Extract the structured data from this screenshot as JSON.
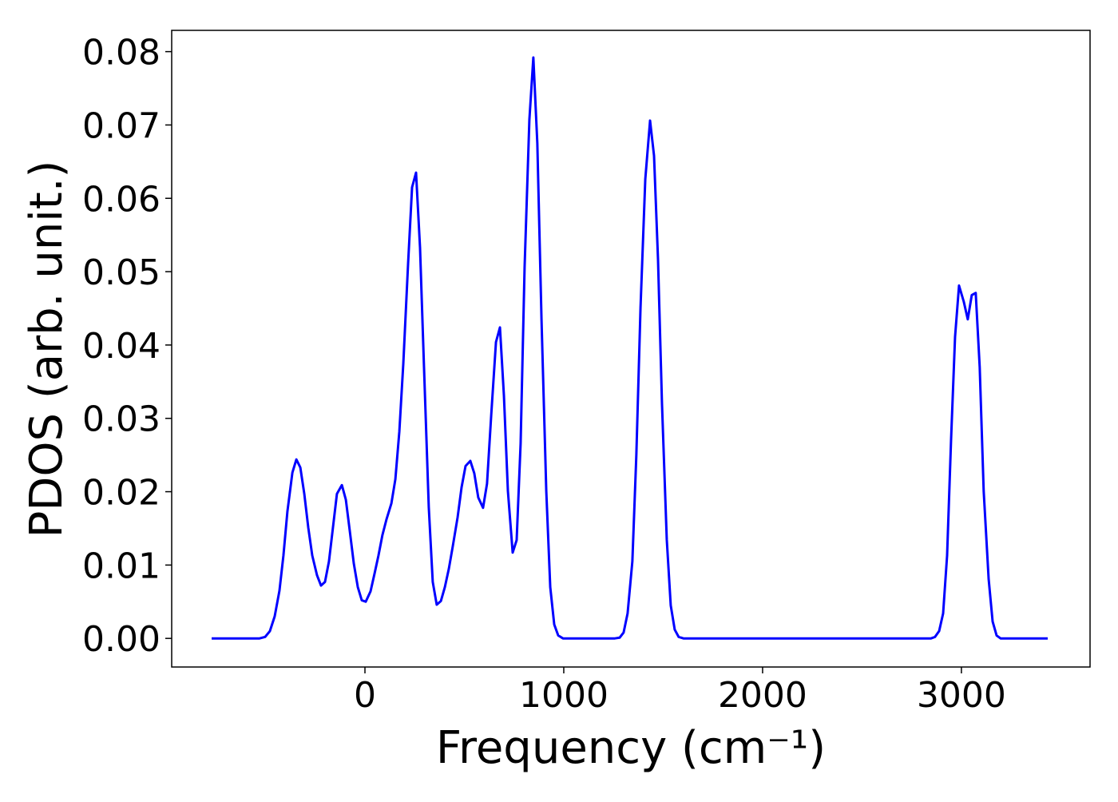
{
  "chart_data": {
    "type": "line",
    "xlabel": "Frequency (cm⁻¹)",
    "ylabel": "PDOS (arb. unit.)",
    "x": [
      -771,
      -530,
      -502,
      -478,
      -454,
      -430,
      -410,
      -390,
      -365,
      -345,
      -325,
      -305,
      -285,
      -265,
      -241,
      -221,
      -201,
      -181,
      -161,
      -141,
      -116,
      -96,
      -76,
      -56,
      -36,
      -16,
      4,
      28,
      48,
      68,
      88,
      108,
      133,
      153,
      173,
      193,
      217,
      237,
      257,
      277,
      297,
      321,
      341,
      361,
      382,
      402,
      422,
      442,
      466,
      486,
      506,
      530,
      550,
      570,
      594,
      614,
      635,
      659,
      679,
      699,
      719,
      743,
      763,
      783,
      803,
      827,
      847,
      867,
      888,
      912,
      932,
      952,
      972,
      996,
      1257,
      1281,
      1301,
      1321,
      1345,
      1365,
      1386,
      1410,
      1434,
      1454,
      1474,
      1494,
      1518,
      1538,
      1558,
      1578,
      1602,
      2847,
      2867,
      2888,
      2908,
      2928,
      2948,
      2968,
      2988,
      3012,
      3032,
      3052,
      3072,
      3092,
      3112,
      3137,
      3157,
      3177,
      3197,
      3434
    ],
    "series": [
      {
        "name": "PDOS",
        "color": "#0000ff",
        "values": [
          0,
          0,
          0.0002,
          0.001,
          0.003,
          0.0065,
          0.0113,
          0.0173,
          0.0226,
          0.0244,
          0.0233,
          0.0197,
          0.0151,
          0.0113,
          0.0086,
          0.0072,
          0.0077,
          0.0105,
          0.0151,
          0.0197,
          0.0209,
          0.0189,
          0.0146,
          0.0102,
          0.007,
          0.0052,
          0.005,
          0.0064,
          0.0088,
          0.0113,
          0.0141,
          0.0162,
          0.0184,
          0.0217,
          0.0282,
          0.0375,
          0.0511,
          0.0615,
          0.0635,
          0.0533,
          0.037,
          0.0179,
          0.0077,
          0.0046,
          0.0051,
          0.007,
          0.0095,
          0.0126,
          0.0165,
          0.0206,
          0.0235,
          0.0242,
          0.0225,
          0.0192,
          0.0178,
          0.0211,
          0.0304,
          0.0404,
          0.0424,
          0.0331,
          0.0201,
          0.0117,
          0.0134,
          0.0266,
          0.0506,
          0.0707,
          0.0792,
          0.0675,
          0.0435,
          0.0201,
          0.007,
          0.0019,
          0.0004,
          0,
          0,
          0.0001,
          0.0008,
          0.0034,
          0.0105,
          0.025,
          0.0451,
          0.0626,
          0.0706,
          0.0658,
          0.0517,
          0.032,
          0.0135,
          0.0045,
          0.0012,
          0.0002,
          0,
          0,
          0.0002,
          0.001,
          0.0034,
          0.0113,
          0.0271,
          0.0411,
          0.0481,
          0.0459,
          0.0435,
          0.0468,
          0.0471,
          0.037,
          0.0201,
          0.0081,
          0.0023,
          0.0004,
          0,
          0
        ]
      }
    ],
    "xlim": [
      -972,
      3647
    ],
    "ylim": [
      -0.0039,
      0.0829
    ],
    "xticks": [
      0,
      1000,
      2000,
      3000
    ],
    "yticks": [
      {
        "value": 0,
        "label": "0.00"
      },
      0.01,
      0.02,
      0.03,
      0.04,
      0.05,
      0.06,
      0.07,
      0.08
    ]
  }
}
